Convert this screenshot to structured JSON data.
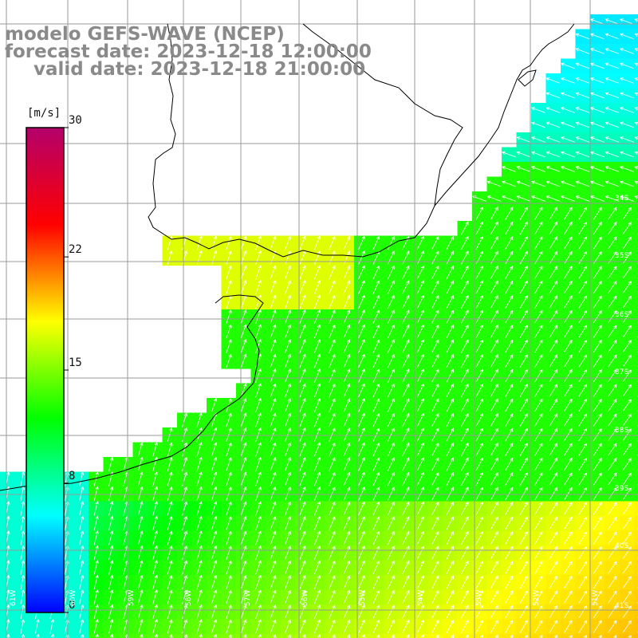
{
  "title": {
    "line1": "modelo GEFS-WAVE (NCEP)",
    "line2": "forecast date: 2023-12-18 12:00:00",
    "line3": "valid date: 2023-12-18 21:00:00"
  },
  "colorbar": {
    "unit": "[m/s]",
    "ticks": [
      "30",
      "22",
      "15",
      "8",
      "0"
    ],
    "tick_values": [
      30,
      22,
      15,
      8,
      0
    ],
    "colors": [
      "#0000ff",
      "#00ffff",
      "#00ff00",
      "#ffff00",
      "#ff0000",
      "#b3006b"
    ]
  },
  "axes": {
    "lat_labels": [
      "34S",
      "35S",
      "36S",
      "37S",
      "38S",
      "39S",
      "40S",
      "41S"
    ],
    "lon_labels": [
      "61W",
      "60W",
      "59W",
      "58W",
      "57W",
      "56W",
      "55W",
      "54W",
      "53W",
      "52W",
      "51W"
    ]
  },
  "legend_colors": {
    "land": "#ffffff",
    "grid": "#9a9a9a",
    "coast": "#000000",
    "arrow": "#ffffff"
  }
}
